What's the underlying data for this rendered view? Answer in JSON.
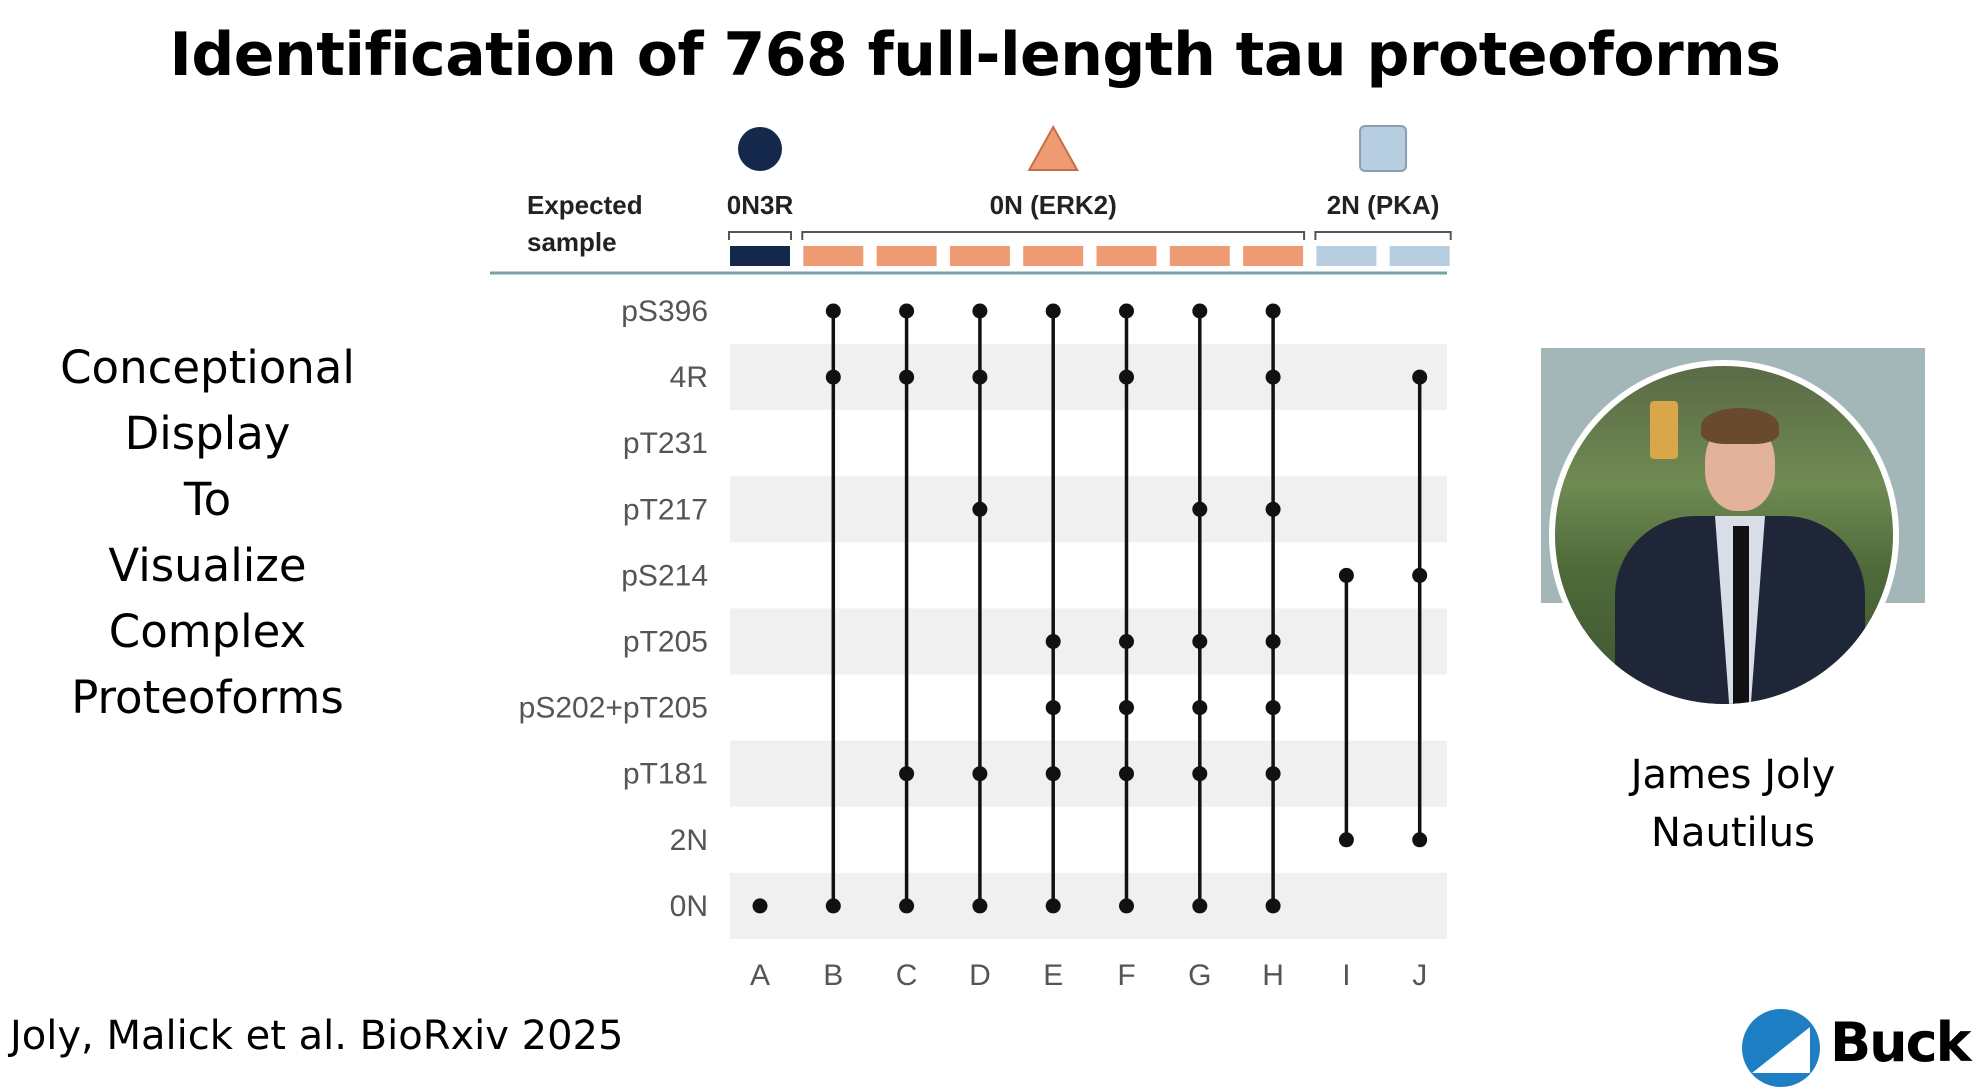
{
  "title": "Identification of 768 full-length tau proteoforms",
  "side_text": [
    "Conceptional",
    "Display",
    "To",
    "Visualize",
    "Complex",
    "Proteoforms"
  ],
  "citation": "Joly, Malick et al. BioRxiv 2025",
  "person": {
    "name": "James Joly",
    "organization": "Nautilus"
  },
  "logo_text": "Buck",
  "colors": {
    "navy": "#14284b",
    "orange": "#ee9b74",
    "lightblue": "#b7cde0",
    "stripe": "#f0f0f0",
    "dot": "#111111"
  },
  "chart_data": {
    "type": "upset",
    "expected_sample_label": [
      "Expected",
      "sample"
    ],
    "groups": [
      {
        "label": "0N3R",
        "shape": "circle",
        "color": "#14284b",
        "columns": [
          "A"
        ]
      },
      {
        "label": "0N (ERK2)",
        "shape": "triangle",
        "color": "#ee9b74",
        "columns": [
          "B",
          "C",
          "D",
          "E",
          "F",
          "G",
          "H"
        ]
      },
      {
        "label": "2N (PKA)",
        "shape": "square",
        "color": "#b7cde0",
        "columns": [
          "I",
          "J"
        ]
      }
    ],
    "rows": [
      "pS396",
      "4R",
      "pT231",
      "pT217",
      "pS214",
      "pT205",
      "pS202+pT205",
      "pT181",
      "2N",
      "0N"
    ],
    "columns": [
      "A",
      "B",
      "C",
      "D",
      "E",
      "F",
      "G",
      "H",
      "I",
      "J"
    ],
    "memberships": {
      "A": [
        "0N"
      ],
      "B": [
        "pS396",
        "4R",
        "0N"
      ],
      "C": [
        "pS396",
        "4R",
        "pT181",
        "0N"
      ],
      "D": [
        "pS396",
        "4R",
        "pT217",
        "pT181",
        "0N"
      ],
      "E": [
        "pS396",
        "pT205",
        "pS202+pT205",
        "pT181",
        "0N"
      ],
      "F": [
        "pS396",
        "4R",
        "pT205",
        "pS202+pT205",
        "pT181",
        "0N"
      ],
      "G": [
        "pS396",
        "pT217",
        "pT205",
        "pS202+pT205",
        "pT181",
        "0N"
      ],
      "H": [
        "pS396",
        "4R",
        "pT217",
        "pT205",
        "pS202+pT205",
        "pT181",
        "0N"
      ],
      "I": [
        "pS214",
        "2N"
      ],
      "J": [
        "4R",
        "pS214",
        "2N"
      ]
    }
  }
}
